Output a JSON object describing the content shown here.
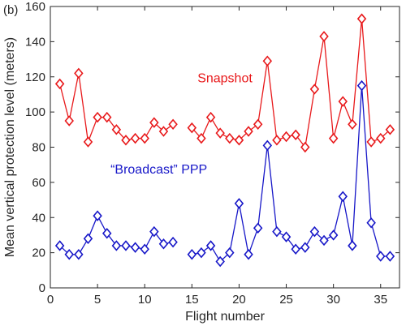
{
  "chart_data": {
    "type": "line",
    "panel_label": "(b)",
    "xlabel": "Flight number",
    "ylabel": "Mean vertical protection level (meters)",
    "xlim": [
      0,
      37
    ],
    "ylim": [
      0,
      160
    ],
    "xticks": [
      0,
      5,
      10,
      15,
      20,
      25,
      30,
      35
    ],
    "yticks": [
      0,
      20,
      40,
      60,
      80,
      100,
      120,
      140,
      160
    ],
    "grid": false,
    "marker": "diamond",
    "series": [
      {
        "name": "Snapshot",
        "color": "#e8191b",
        "segments": [
          {
            "x": [
              1,
              2,
              3,
              4,
              5,
              6,
              7,
              8,
              9,
              10,
              11,
              12,
              13
            ],
            "y": [
              116,
              95,
              122,
              83,
              97,
              97,
              90,
              84,
              85,
              85,
              94,
              89,
              93
            ]
          },
          {
            "x": [
              15,
              16,
              17,
              18,
              19,
              20,
              21,
              22,
              23,
              24,
              25,
              26,
              27,
              28,
              29,
              30,
              31,
              32,
              33,
              34,
              35,
              36
            ],
            "y": [
              91,
              85,
              97,
              88,
              85,
              84,
              89,
              93,
              129,
              84,
              86,
              87,
              80,
              113,
              143,
              85,
              106,
              93,
              153,
              83,
              85,
              90
            ]
          }
        ]
      },
      {
        "name": "“Broadcast” PPP",
        "color": "#1717c8",
        "segments": [
          {
            "x": [
              1,
              2,
              3,
              4,
              5,
              6,
              7,
              8,
              9,
              10,
              11,
              12,
              13
            ],
            "y": [
              24,
              19,
              19,
              28,
              41,
              31,
              24,
              24,
              23,
              22,
              32,
              25,
              26
            ]
          },
          {
            "x": [
              15,
              16,
              17,
              18,
              19,
              20,
              21,
              22,
              23,
              24,
              25,
              26,
              27,
              28,
              29,
              30,
              31,
              32,
              33,
              34,
              35,
              36
            ],
            "y": [
              19,
              20,
              24,
              15,
              20,
              48,
              19,
              34,
              81,
              32,
              29,
              22,
              23,
              32,
              27,
              30,
              52,
              24,
              115,
              37,
              18,
              18
            ]
          }
        ]
      }
    ],
    "annotations": [
      {
        "text": "Snapshot",
        "x": 18.5,
        "y": 117,
        "color": "#e8191b"
      },
      {
        "text": "“Broadcast” PPP",
        "x": 11.5,
        "y": 65,
        "color": "#1717c8"
      }
    ]
  }
}
